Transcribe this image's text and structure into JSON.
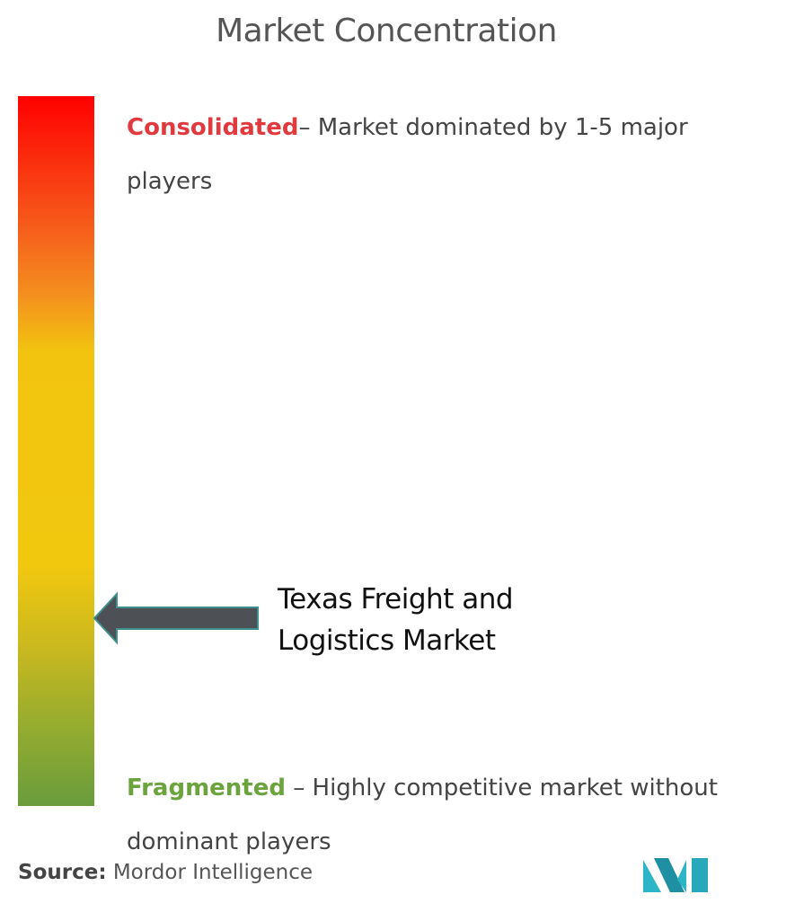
{
  "title": "Market Concentration",
  "scale": {
    "top": {
      "label": "Consolidated",
      "description": "– Market dominated by 1-5 major players"
    },
    "bottom": {
      "label": "Fragmented",
      "description": "– Highly competitive market without dominant players"
    }
  },
  "marker": {
    "label": "Texas Freight and Logistics Market"
  },
  "source": {
    "label": "Source:",
    "name": "Mordor Intelligence"
  }
}
